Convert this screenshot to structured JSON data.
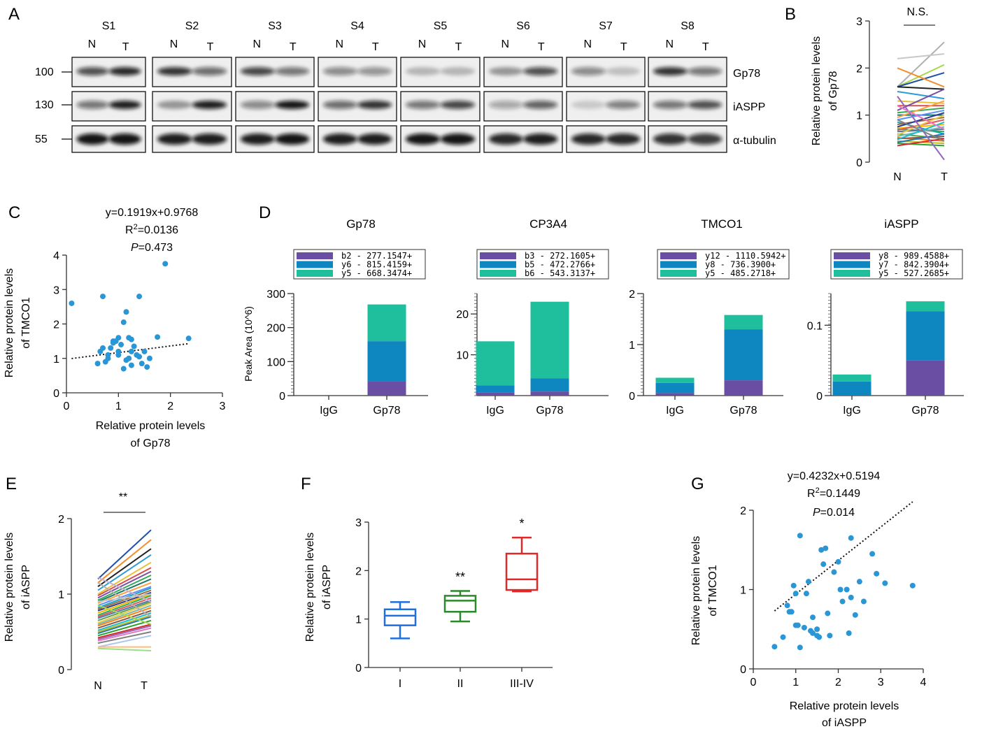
{
  "panels": {
    "A": {
      "letter": "A",
      "samples": [
        "S1",
        "S2",
        "S3",
        "S4",
        "S5",
        "S6",
        "S7",
        "S8"
      ],
      "lane_labels": [
        "N",
        "T"
      ],
      "markers": [
        "100",
        "130",
        "55"
      ],
      "proteins": [
        "Gp78",
        "iASPP",
        "α-tubulin"
      ],
      "bands": {
        "Gp78": [
          [
            0.7,
            0.9
          ],
          [
            0.85,
            0.55
          ],
          [
            0.75,
            0.5
          ],
          [
            0.4,
            0.35
          ],
          [
            0.15,
            0.15
          ],
          [
            0.3,
            0.7
          ],
          [
            0.4,
            0.1
          ],
          [
            0.85,
            0.5
          ]
        ],
        "iASPP": [
          [
            0.5,
            0.95
          ],
          [
            0.3,
            0.95
          ],
          [
            0.4,
            1.0
          ],
          [
            0.55,
            0.85
          ],
          [
            0.5,
            0.75
          ],
          [
            0.25,
            0.6
          ],
          [
            0.05,
            0.45
          ],
          [
            0.5,
            0.7
          ]
        ],
        "tubulin": [
          [
            1,
            1
          ],
          [
            0.95,
            0.95
          ],
          [
            0.95,
            1
          ],
          [
            0.95,
            0.95
          ],
          [
            1,
            1
          ],
          [
            0.9,
            0.95
          ],
          [
            0.9,
            0.9
          ],
          [
            0.85,
            0.8
          ]
        ]
      }
    },
    "B": {
      "letter": "B",
      "significance": "N.S.",
      "ylabel_lines": [
        "Relative protein levels",
        "of  Gp78"
      ],
      "yticks": [
        "0",
        "1",
        "2",
        "3"
      ],
      "xlabels": [
        "N",
        "T"
      ]
    },
    "C": {
      "letter": "C",
      "equation": "y=0.1919x+0.9768",
      "r2_prefix": "R",
      "r2_sup": "2",
      "r2_value": "=0.0136",
      "p_italic": "P",
      "p_value": "=0.473",
      "ylabel_lines": [
        "Relative protein levels",
        "of  TMCO1"
      ],
      "xlabel_lines": [
        "Relative protein levels",
        "of Gp78"
      ],
      "xticks": [
        "0",
        "1",
        "2",
        "3"
      ],
      "yticks": [
        "0",
        "1",
        "2",
        "3",
        "4"
      ]
    },
    "D": {
      "letter": "D",
      "ylabel": "Peak Area (10^6)"
    },
    "E": {
      "letter": "E",
      "significance": "**",
      "ylabel_lines": [
        "Relative protein levels",
        "of iASPP"
      ],
      "yticks": [
        "0",
        "1",
        "2"
      ],
      "xlabels": [
        "N",
        "T"
      ]
    },
    "F": {
      "letter": "F",
      "ylabel_lines": [
        "Relative protein levels",
        "of iASPP"
      ],
      "yticks": [
        "0",
        "1",
        "2",
        "3"
      ],
      "stars": [
        "",
        "**",
        "*"
      ]
    },
    "G": {
      "letter": "G",
      "equation": "y=0.4232x+0.5194",
      "r2_prefix": "R",
      "r2_sup": "2",
      "r2_value": "=0.1449",
      "p_italic": "P",
      "p_value": "=0.014",
      "ylabel_lines": [
        "Relative protein levels",
        "of TMCO1"
      ],
      "xlabel_lines": [
        "Relative protein levels",
        "of iASPP"
      ],
      "xticks": [
        "0",
        "1",
        "2",
        "3",
        "4"
      ],
      "yticks": [
        "0",
        "1",
        "2"
      ]
    }
  },
  "colors": {
    "scatter": "#2a96d6",
    "purple": "#6a4ea3",
    "blue": "#0e86bf",
    "teal": "#1fbf9d",
    "box_I": "#1f6fe0",
    "box_II": "#2a8a2a",
    "box_III": "#e02828"
  },
  "chart_data": [
    {
      "panel": "B",
      "type": "line",
      "x": [
        "N",
        "T"
      ],
      "ylim": [
        0,
        3
      ],
      "pairs": [
        [
          1.6,
          2.55
        ],
        [
          2.2,
          2.3
        ],
        [
          1.6,
          2.07
        ],
        [
          1.6,
          1.9
        ],
        [
          2.0,
          1.6
        ],
        [
          1.6,
          1.55
        ],
        [
          1.5,
          1.35
        ],
        [
          1.3,
          1.25
        ],
        [
          1.2,
          1.2
        ],
        [
          1.1,
          1.55
        ],
        [
          1.05,
          1.15
        ],
        [
          1.0,
          1.0
        ],
        [
          0.95,
          1.3
        ],
        [
          0.9,
          1.1
        ],
        [
          0.85,
          0.6
        ],
        [
          0.8,
          0.95
        ],
        [
          0.75,
          1.05
        ],
        [
          0.72,
          0.8
        ],
        [
          0.7,
          0.65
        ],
        [
          0.68,
          0.9
        ],
        [
          0.65,
          0.7
        ],
        [
          0.6,
          0.5
        ],
        [
          0.58,
          1.0
        ],
        [
          0.55,
          0.75
        ],
        [
          0.52,
          0.45
        ],
        [
          0.5,
          0.55
        ],
        [
          0.48,
          0.85
        ],
        [
          0.45,
          0.4
        ],
        [
          0.42,
          0.6
        ],
        [
          0.4,
          0.35
        ],
        [
          0.35,
          0.5
        ],
        [
          1.4,
          0.05
        ],
        [
          1.2,
          0.7
        ],
        [
          0.9,
          0.45
        ]
      ]
    },
    {
      "panel": "C",
      "type": "scatter",
      "xlim": [
        0,
        3
      ],
      "ylim": [
        0,
        4
      ],
      "x": [
        0.1,
        0.7,
        1.4,
        1.9,
        2.35,
        1.15,
        1.1,
        1.2,
        1.0,
        0.95,
        0.9,
        0.85,
        0.8,
        1.05,
        1.3,
        1.25,
        1.5,
        1.6,
        0.65,
        0.75,
        1.0,
        1.1,
        1.2,
        1.25,
        1.35,
        1.45,
        1.55,
        1.75,
        0.7,
        0.8,
        0.9,
        1.0,
        1.15,
        1.25,
        0.6,
        1.4
      ],
      "y": [
        2.6,
        2.8,
        2.8,
        3.75,
        1.58,
        2.35,
        2.05,
        1.6,
        1.6,
        1.5,
        1.45,
        1.3,
        1.0,
        1.4,
        1.35,
        1.55,
        1.2,
        1.0,
        1.2,
        0.9,
        1.1,
        0.7,
        1.0,
        1.2,
        1.1,
        0.85,
        0.75,
        1.62,
        1.3,
        1.1,
        1.5,
        1.2,
        0.95,
        0.8,
        0.85,
        1.05
      ],
      "trend": {
        "slope": 0.1919,
        "intercept": 0.9768
      }
    },
    {
      "panel": "D",
      "type": "bar",
      "stacked": true,
      "subpanels": [
        {
          "title": "Gp78",
          "ylim": [
            0,
            300
          ],
          "yticks": [
            "0",
            "100",
            "200",
            "300"
          ],
          "categories": [
            "IgG",
            "Gp78"
          ],
          "legend": [
            "b2 - 277.1547+",
            "y6 - 815.4159+",
            "y5 - 668.3474+"
          ],
          "series": [
            {
              "values": [
                0,
                42
              ]
            },
            {
              "values": [
                0,
                118
              ]
            },
            {
              "values": [
                0,
                108
              ]
            }
          ]
        },
        {
          "title": "CP3A4",
          "ylim": [
            0,
            25
          ],
          "yticks": [
            "10",
            "20"
          ],
          "categories": [
            "IgG",
            "Gp78"
          ],
          "legend": [
            "b3 - 272.1605+",
            "b5 - 472.2766+",
            "b6 - 543.3137+"
          ],
          "series": [
            {
              "values": [
                0.7,
                1.0
              ]
            },
            {
              "values": [
                1.8,
                3.2
              ]
            },
            {
              "values": [
                10.8,
                18.8
              ]
            }
          ]
        },
        {
          "title": "TMCO1",
          "ylim": [
            0,
            2
          ],
          "yticks": [
            "0",
            "1",
            "2"
          ],
          "categories": [
            "IgG",
            "Gp78"
          ],
          "legend": [
            "y12 - 1110.5942+",
            "y8 - 736.3900+",
            "y5 - 485.2718+"
          ],
          "series": [
            {
              "values": [
                0.05,
                0.3
              ]
            },
            {
              "values": [
                0.2,
                1.0
              ]
            },
            {
              "values": [
                0.1,
                0.28
              ]
            }
          ]
        },
        {
          "title": "iASPP",
          "ylim": [
            0,
            0.145
          ],
          "yticks": [
            "0",
            "0.1"
          ],
          "categories": [
            "IgG",
            "Gp78"
          ],
          "legend": [
            "y8 - 989.4588+",
            "y7 - 842.3904+",
            "y5 - 527.2685+"
          ],
          "series": [
            {
              "values": [
                0,
                0.05
              ]
            },
            {
              "values": [
                0.02,
                0.07
              ]
            },
            {
              "values": [
                0.01,
                0.014
              ]
            }
          ]
        }
      ]
    },
    {
      "panel": "E",
      "type": "line",
      "x": [
        "N",
        "T"
      ],
      "ylim": [
        0,
        2
      ],
      "pairs": [
        [
          1.2,
          1.85
        ],
        [
          1.15,
          1.72
        ],
        [
          1.1,
          1.6
        ],
        [
          1.05,
          1.52
        ],
        [
          1.0,
          1.42
        ],
        [
          0.98,
          1.35
        ],
        [
          0.95,
          1.3
        ],
        [
          0.92,
          1.25
        ],
        [
          0.9,
          1.2
        ],
        [
          0.88,
          1.15
        ],
        [
          0.85,
          1.1
        ],
        [
          0.82,
          1.08
        ],
        [
          0.8,
          1.05
        ],
        [
          0.78,
          1.02
        ],
        [
          0.75,
          1.0
        ],
        [
          0.72,
          0.98
        ],
        [
          0.7,
          0.95
        ],
        [
          0.68,
          0.92
        ],
        [
          0.65,
          0.9
        ],
        [
          0.62,
          0.88
        ],
        [
          0.6,
          0.85
        ],
        [
          0.58,
          0.82
        ],
        [
          0.55,
          0.78
        ],
        [
          0.52,
          0.75
        ],
        [
          0.5,
          0.72
        ],
        [
          0.48,
          0.7
        ],
        [
          0.45,
          0.65
        ],
        [
          0.42,
          0.6
        ],
        [
          0.4,
          0.58
        ],
        [
          0.38,
          0.55
        ],
        [
          0.35,
          0.5
        ],
        [
          0.3,
          0.45
        ],
        [
          0.28,
          0.25
        ],
        [
          0.3,
          0.3
        ],
        [
          1.22,
          0.9
        ],
        [
          1.15,
          0.7
        ],
        [
          0.9,
          1.0
        ],
        [
          0.85,
          0.6
        ]
      ]
    },
    {
      "panel": "F",
      "type": "box",
      "categories": [
        "I",
        "II",
        "III-IV"
      ],
      "ylim": [
        0,
        3
      ],
      "boxes": [
        {
          "min": 0.6,
          "q1": 0.87,
          "median": 1.07,
          "q3": 1.2,
          "max": 1.35
        },
        {
          "min": 0.95,
          "q1": 1.15,
          "median": 1.38,
          "q3": 1.48,
          "max": 1.58
        },
        {
          "min": 1.57,
          "q1": 1.6,
          "median": 1.82,
          "q3": 2.35,
          "max": 2.68
        }
      ]
    },
    {
      "panel": "G",
      "type": "scatter",
      "xlim": [
        0,
        4
      ],
      "ylim": [
        0,
        2
      ],
      "x": [
        0.5,
        0.7,
        0.8,
        0.9,
        0.95,
        1.0,
        1.05,
        1.1,
        1.2,
        1.25,
        1.3,
        1.35,
        1.4,
        1.5,
        1.55,
        1.6,
        1.65,
        1.7,
        1.75,
        1.8,
        1.9,
        2.0,
        2.05,
        2.1,
        2.2,
        2.25,
        2.3,
        2.4,
        2.5,
        2.6,
        2.8,
        2.9,
        3.1,
        3.75,
        1.4,
        1.1,
        2.3,
        1.0,
        1.5,
        0.85
      ],
      "y": [
        0.28,
        0.4,
        0.8,
        0.72,
        1.05,
        0.95,
        0.55,
        1.68,
        0.52,
        0.95,
        1.1,
        0.48,
        0.45,
        0.42,
        0.4,
        1.5,
        1.32,
        1.52,
        0.7,
        0.42,
        1.22,
        1.35,
        1.0,
        0.85,
        1.0,
        0.45,
        1.65,
        0.68,
        1.1,
        0.85,
        1.45,
        1.2,
        1.08,
        1.05,
        0.65,
        0.27,
        0.9,
        0.55,
        0.5,
        0.72
      ],
      "trend": {
        "slope": 0.4232,
        "intercept": 0.5194
      }
    }
  ]
}
